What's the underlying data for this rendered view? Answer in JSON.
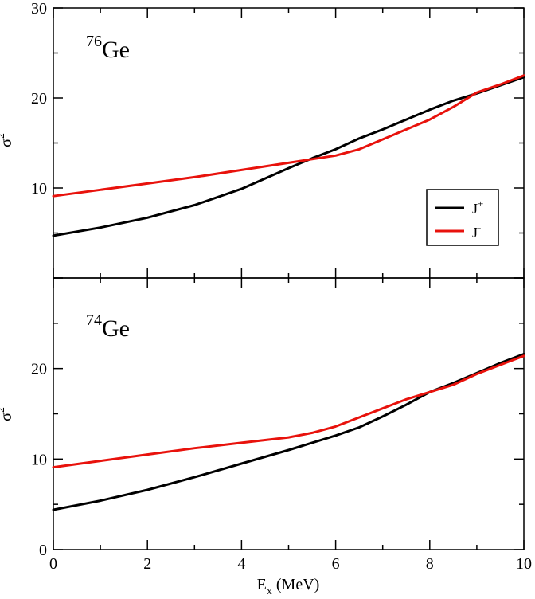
{
  "chart_data": {
    "type": "line",
    "xlabel": "E",
    "xlabel_sub": "x",
    "xlabel_unit": " (MeV)",
    "xlim": [
      0,
      10
    ],
    "xticks": [
      "0",
      "2",
      "4",
      "6",
      "8",
      "10"
    ],
    "legend": {
      "placement": "right",
      "entries": [
        {
          "base": "J",
          "sup": "+",
          "color": "#000000"
        },
        {
          "base": "J",
          "sup": "-",
          "color": "#e8120c"
        }
      ]
    },
    "panels": [
      {
        "nucleus_mass": "76",
        "nucleus_symbol": "Ge",
        "ylabel_base": "σ",
        "ylabel_sup": "2",
        "ylim": [
          0,
          30
        ],
        "yticks": [
          "10",
          "20",
          "30"
        ],
        "series": [
          {
            "color": "#000000",
            "x": [
              0,
              1,
              2,
              3,
              4,
              5,
              5.5,
              6,
              6.5,
              7,
              7.5,
              8,
              8.5,
              9,
              9.5,
              10
            ],
            "y": [
              4.7,
              5.6,
              6.7,
              8.1,
              9.9,
              12.2,
              13.3,
              14.3,
              15.5,
              16.5,
              17.6,
              18.7,
              19.7,
              20.5,
              21.4,
              22.3
            ]
          },
          {
            "color": "#e8120c",
            "x": [
              0,
              1,
              2,
              3,
              4,
              5,
              5.5,
              6,
              6.5,
              7,
              7.5,
              8,
              8.5,
              9,
              9.5,
              10
            ],
            "y": [
              9.1,
              9.8,
              10.5,
              11.2,
              12.0,
              12.8,
              13.2,
              13.6,
              14.3,
              15.4,
              16.5,
              17.6,
              19.0,
              20.6,
              21.5,
              22.5
            ]
          }
        ]
      },
      {
        "nucleus_mass": "74",
        "nucleus_symbol": "Ge",
        "ylabel_base": "σ",
        "ylabel_sup": "2",
        "ylim": [
          0,
          30
        ],
        "yticks": [
          "0",
          "10",
          "20"
        ],
        "series": [
          {
            "color": "#000000",
            "x": [
              0,
              1,
              2,
              3,
              4,
              5,
              6,
              6.5,
              7,
              7.5,
              8,
              8.5,
              9,
              9.5,
              10
            ],
            "y": [
              4.4,
              5.4,
              6.6,
              8.0,
              9.5,
              11.0,
              12.6,
              13.5,
              14.7,
              16.0,
              17.4,
              18.4,
              19.5,
              20.6,
              21.6
            ]
          },
          {
            "color": "#e8120c",
            "x": [
              0,
              1,
              2,
              3,
              4,
              5,
              5.5,
              6,
              6.5,
              7,
              7.5,
              8,
              8.5,
              9,
              9.5,
              10
            ],
            "y": [
              9.1,
              9.8,
              10.5,
              11.2,
              11.8,
              12.4,
              12.9,
              13.6,
              14.6,
              15.6,
              16.6,
              17.4,
              18.2,
              19.4,
              20.4,
              21.4
            ]
          }
        ]
      }
    ]
  }
}
